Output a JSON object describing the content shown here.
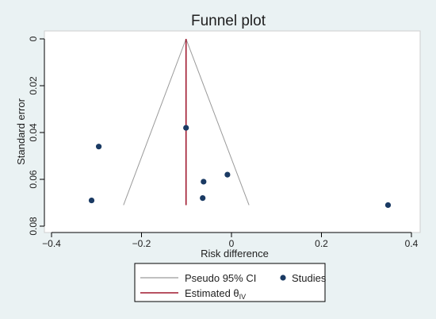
{
  "chart_data": {
    "type": "scatter",
    "title": "Funnel plot",
    "xlabel": "Risk difference",
    "ylabel": "Standard error",
    "xlim": [
      -0.42,
      0.43
    ],
    "ylim": [
      0,
      0.084
    ],
    "y_axis_reversed": true,
    "x_ticks": [
      {
        "value": -0.4,
        "label": "−0.4"
      },
      {
        "value": -0.2,
        "label": "−0.2"
      },
      {
        "value": 0,
        "label": "0"
      },
      {
        "value": 0.2,
        "label": "0.2"
      },
      {
        "value": 0.4,
        "label": "0.4"
      }
    ],
    "y_ticks": [
      {
        "value": 0,
        "label": "0"
      },
      {
        "value": 0.02,
        "label": "0.02"
      },
      {
        "value": 0.04,
        "label": "0.04"
      },
      {
        "value": 0.06,
        "label": "0.06"
      },
      {
        "value": 0.08,
        "label": "0.08"
      }
    ],
    "grid": false,
    "studies": {
      "name": "Studies",
      "color": "#1a3a63",
      "points": [
        {
          "x": -0.101,
          "y": 0.038
        },
        {
          "x": -0.295,
          "y": 0.046
        },
        {
          "x": -0.062,
          "y": 0.061
        },
        {
          "x": -0.009,
          "y": 0.058
        },
        {
          "x": -0.064,
          "y": 0.068
        },
        {
          "x": -0.311,
          "y": 0.069
        },
        {
          "x": 0.348,
          "y": 0.071
        }
      ]
    },
    "pseudo_ci": {
      "name": "Pseudo 95% CI",
      "color": "#9a9a9a",
      "apex": {
        "x": -0.101,
        "y": 0
      },
      "base_y": 0.071,
      "base_left_x": -0.24,
      "base_right_x": 0.039
    },
    "estimate": {
      "name": "Estimated θ",
      "subscript": "IV",
      "color": "#a0182f",
      "x": -0.101,
      "y_range": [
        0,
        0.071
      ]
    },
    "legend_position": "bottom"
  }
}
